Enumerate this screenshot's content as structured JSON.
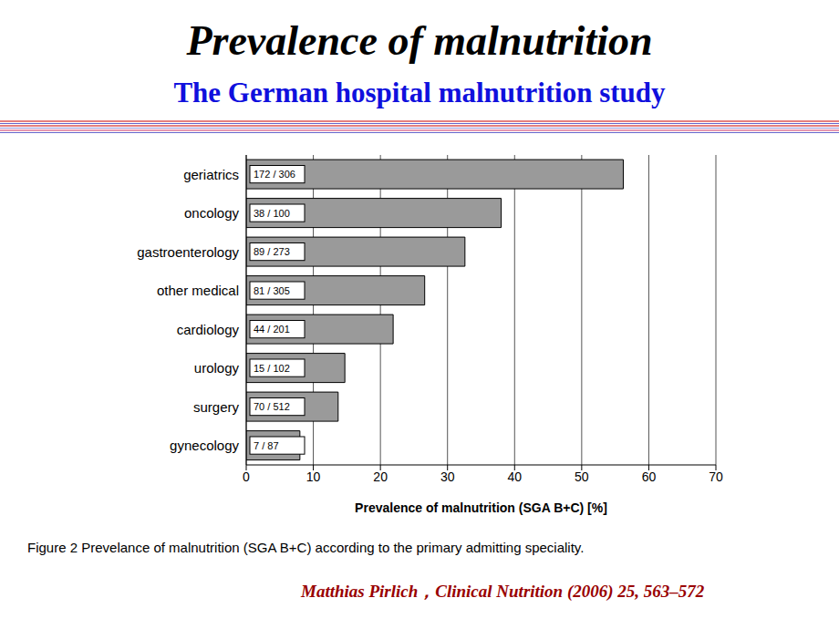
{
  "chart_data": {
    "type": "bar",
    "title": "Prevalence of malnutrition",
    "subtitle": "The German hospital malnutrition study",
    "orientation": "horizontal",
    "categories": [
      "geriatrics",
      "oncology",
      "gastroenterology",
      "other medical",
      "cardiology",
      "urology",
      "surgery",
      "gynecology"
    ],
    "values": [
      56.2,
      38.0,
      32.6,
      26.6,
      21.9,
      14.7,
      13.7,
      8.0
    ],
    "bar_annotations": [
      "172 / 306",
      "38 / 100",
      "89 / 273",
      "81 / 305",
      "44 / 201",
      "15 / 102",
      "70 / 512",
      "7 / 87"
    ],
    "x_label": "Prevalence of malnutrition (SGA B+C) [%]",
    "xlim": [
      0,
      70
    ],
    "xticks": [
      0,
      10,
      20,
      30,
      40,
      50,
      60,
      70
    ],
    "grid": true,
    "color": "#9a9a9a",
    "caption": "Figure 2 Prevelance of malnutrition (SGA B+C) according to the primary admitting speciality.",
    "source": "Matthias Pirlich，Clinical Nutrition (2006) 25, 563–572"
  }
}
